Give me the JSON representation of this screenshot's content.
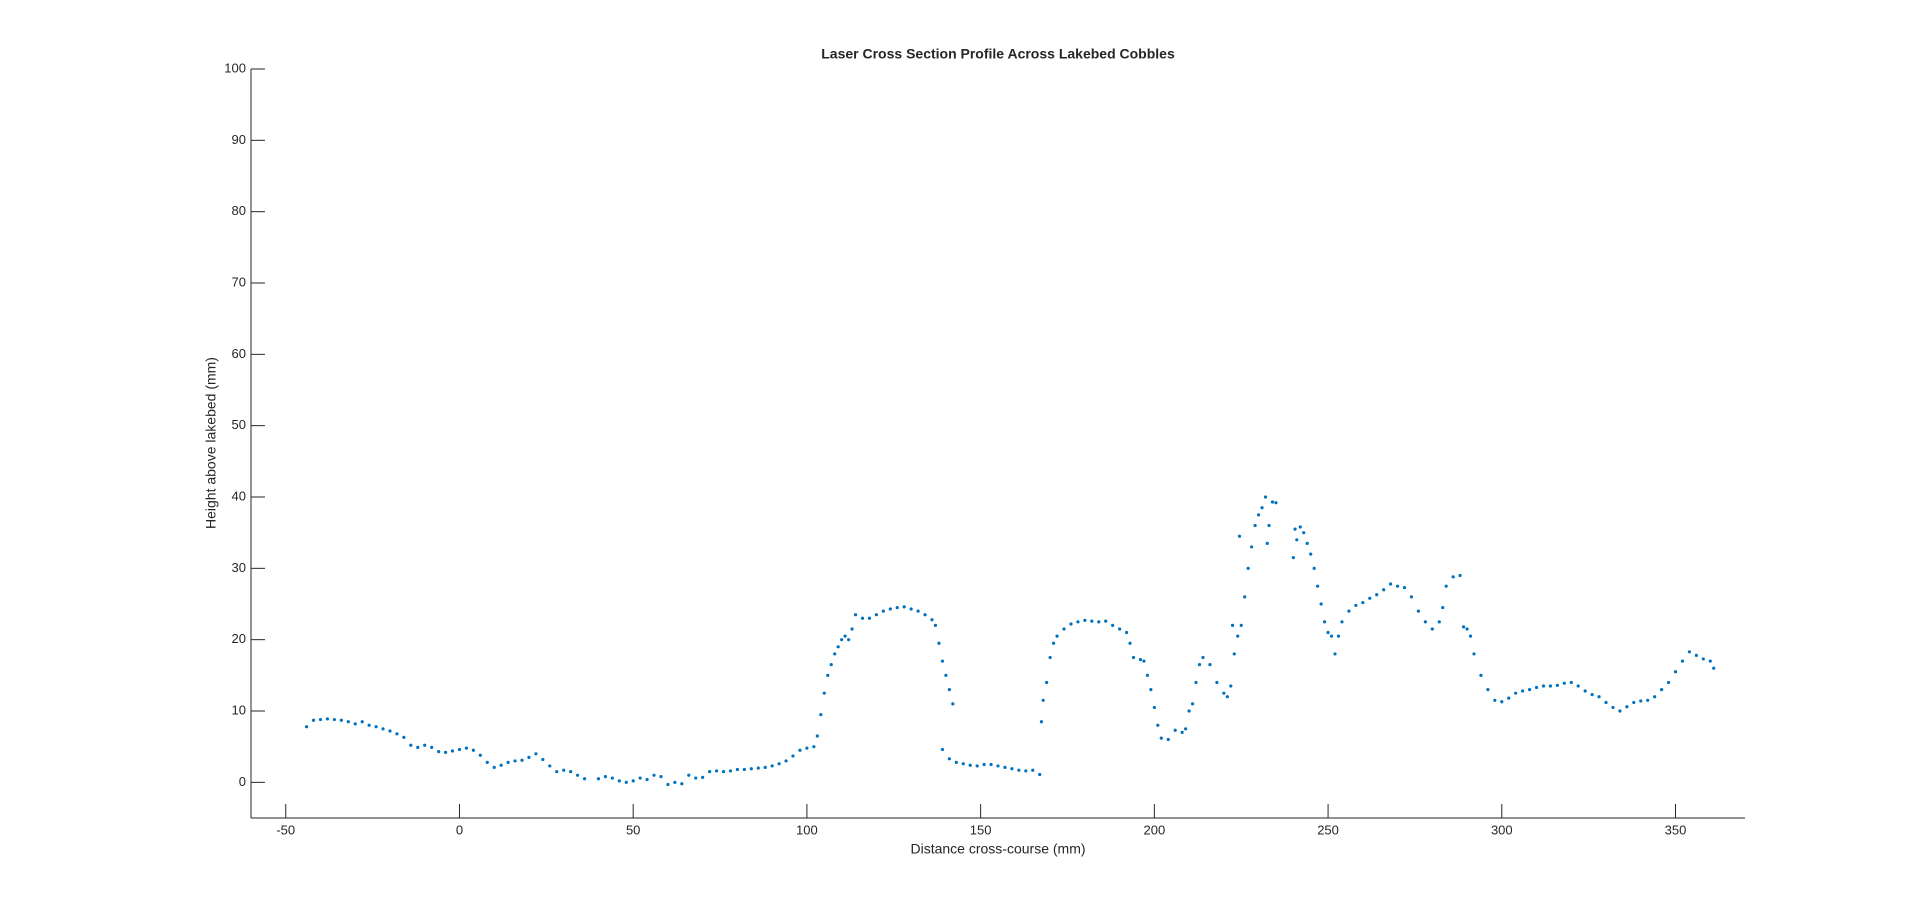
{
  "chart_data": {
    "type": "scatter",
    "title": "Laser Cross Section Profile Across Lakebed Cobbles",
    "xlabel": "Distance cross-course (mm)",
    "ylabel": "Height above lakebed (mm)",
    "color": "#0072bd",
    "xlim": [
      -60,
      370
    ],
    "ylim": [
      -5,
      100
    ],
    "xticks": [
      -50,
      0,
      50,
      100,
      150,
      200,
      250,
      300,
      350
    ],
    "yticks": [
      0,
      10,
      20,
      30,
      40,
      50,
      60,
      70,
      80,
      90,
      100
    ],
    "x": [
      -44,
      -42,
      -40,
      -38,
      -36,
      -34,
      -32,
      -30,
      -28,
      -26,
      -24,
      -22,
      -20,
      -18,
      -16,
      -14,
      -12,
      -10,
      -8,
      -6,
      -4,
      -2,
      0,
      2,
      4,
      6,
      8,
      10,
      12,
      14,
      16,
      18,
      20,
      22,
      24,
      26,
      28,
      30,
      32,
      34,
      36,
      40,
      42,
      44,
      46,
      48,
      50,
      52,
      54,
      56,
      58,
      60,
      62,
      64,
      66,
      68,
      70,
      72,
      74,
      76,
      78,
      80,
      82,
      84,
      86,
      88,
      90,
      92,
      94,
      96,
      98,
      100,
      102,
      103,
      104,
      105,
      106,
      107,
      108,
      109,
      110,
      111,
      112,
      113,
      114,
      116,
      118,
      120,
      122,
      124,
      126,
      128,
      130,
      132,
      134,
      136,
      137,
      138,
      139,
      140,
      141,
      142,
      139,
      141,
      143,
      145,
      147,
      149,
      151,
      153,
      155,
      157,
      159,
      161,
      163,
      165,
      167,
      167.5,
      168,
      169,
      170,
      171,
      172,
      174,
      176,
      178,
      180,
      182,
      184,
      186,
      188,
      190,
      192,
      193,
      194,
      196,
      197,
      198,
      199,
      200,
      201,
      202,
      204,
      206,
      208,
      209,
      210,
      211,
      212,
      213,
      214,
      216,
      218,
      220,
      221,
      222,
      223,
      222.5,
      224,
      224.5,
      225,
      226,
      227,
      228,
      229,
      230,
      231,
      232,
      232.5,
      233,
      234,
      235,
      240,
      240.5,
      241,
      242,
      243,
      244,
      245,
      246,
      247,
      248,
      249,
      250,
      251,
      252,
      253,
      254,
      256,
      258,
      260,
      262,
      264,
      266,
      268,
      270,
      272,
      274,
      276,
      278,
      280,
      282,
      283,
      284,
      286,
      288,
      289,
      290,
      291,
      292,
      294,
      296,
      298,
      300,
      302,
      304,
      306,
      308,
      310,
      312,
      314,
      316,
      318,
      320,
      322,
      324,
      326,
      328,
      330,
      332,
      334,
      336,
      338,
      340,
      342,
      344,
      346,
      348,
      350,
      352,
      354,
      356,
      358,
      360,
      361
    ],
    "values": [
      7.8,
      8.7,
      8.8,
      8.9,
      8.8,
      8.7,
      8.5,
      8.2,
      8.5,
      8.0,
      7.8,
      7.5,
      7.2,
      6.8,
      6.3,
      5.2,
      4.9,
      5.2,
      4.9,
      4.3,
      4.2,
      4.4,
      4.6,
      4.8,
      4.5,
      3.8,
      2.8,
      2.1,
      2.4,
      2.8,
      3.0,
      3.1,
      3.5,
      4.0,
      3.2,
      2.3,
      1.5,
      1.7,
      1.5,
      1.0,
      0.5,
      0.5,
      0.8,
      0.6,
      0.2,
      0.0,
      0.2,
      0.6,
      0.4,
      1.0,
      0.8,
      -0.3,
      0.0,
      -0.2,
      1.0,
      0.6,
      0.7,
      1.5,
      1.6,
      1.5,
      1.6,
      1.8,
      1.8,
      1.9,
      2.0,
      2.1,
      2.3,
      2.6,
      3.0,
      3.7,
      4.5,
      4.8,
      5.0,
      6.5,
      9.5,
      12.5,
      15.0,
      16.5,
      18.0,
      19.0,
      20.0,
      20.5,
      20.0,
      21.5,
      23.5,
      23.0,
      23.0,
      23.5,
      24.0,
      24.3,
      24.5,
      24.6,
      24.3,
      24.0,
      23.5,
      22.8,
      22.0,
      19.5,
      17.0,
      15.0,
      13.0,
      11.0,
      4.6,
      3.3,
      2.8,
      2.6,
      2.4,
      2.3,
      2.5,
      2.5,
      2.3,
      2.1,
      1.9,
      1.7,
      1.6,
      1.7,
      1.1,
      8.5,
      11.5,
      14,
      17.5,
      19.5,
      20.5,
      21.5,
      22.2,
      22.5,
      22.7,
      22.6,
      22.5,
      22.6,
      22.0,
      21.5,
      21.0,
      19.5,
      17.5,
      17.2,
      17.0,
      15.0,
      13.0,
      10.5,
      8,
      6.2,
      6.0,
      7.3,
      7.0,
      7.5,
      10,
      11,
      14,
      16.5,
      17.5,
      16.5,
      14,
      12.5,
      12,
      13.5,
      18,
      22,
      20.5,
      34.5,
      22,
      26,
      30,
      33,
      36,
      37.5,
      38.5,
      40,
      33.5,
      36,
      39.3,
      39.2,
      31.5,
      35.5,
      34,
      35.8,
      35,
      33.5,
      32,
      30,
      27.5,
      25,
      22.5,
      21,
      20.5,
      18,
      20.5,
      22.5,
      24,
      24.8,
      25.2,
      25.8,
      26.3,
      27,
      27.8,
      27.5,
      27.3,
      26,
      24,
      22.5,
      21.5,
      22.5,
      24.5,
      27.5,
      28.8,
      29,
      21.8,
      21.5,
      20.5,
      18,
      15,
      13,
      11.5,
      11.3,
      11.8,
      12.5,
      12.8,
      13.0,
      13.3,
      13.5,
      13.5,
      13.6,
      13.9,
      14.0,
      13.5,
      12.8,
      12.3,
      12.0,
      11.2,
      10.5,
      10.0,
      10.6,
      11.2,
      11.4,
      11.5,
      12.0,
      13.0,
      14.0,
      15.5,
      17.0,
      18.3,
      17.8,
      17.3,
      17.0,
      16.0
    ]
  }
}
